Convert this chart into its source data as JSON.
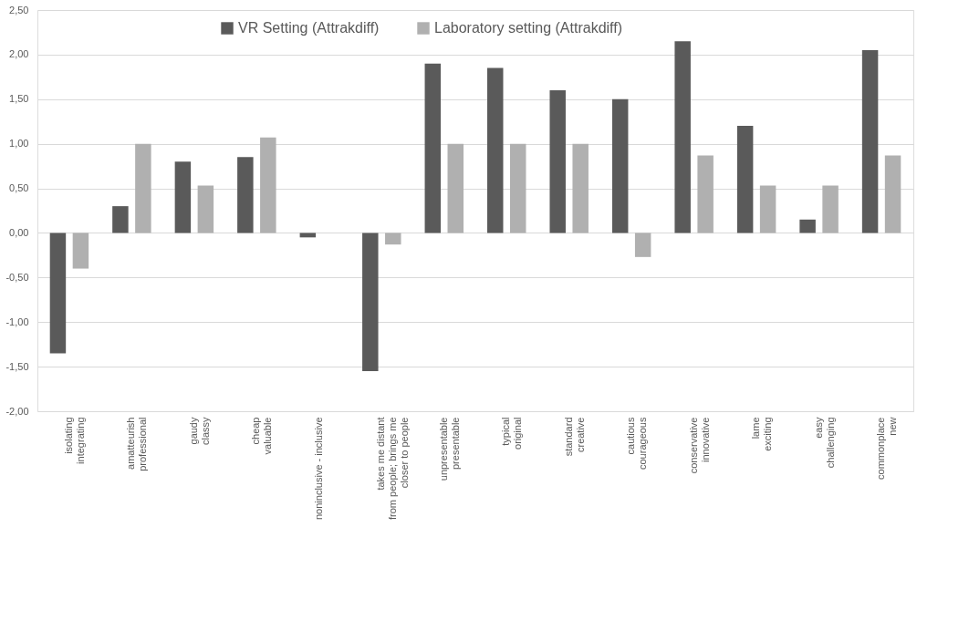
{
  "chart_data": {
    "type": "bar",
    "categories": [
      "isolating\nintegrating",
      "amatteurish\nprofessional",
      "gaudy\nclassy",
      "cheap\nvaluable",
      "noninclusive - inclusive",
      "takes me distant\nfrom people; brings me\ncloser to people",
      "unpresentable\npresentable",
      "typical\noriginal",
      "standard\ncreative",
      "cautious\ncourageous",
      "conservative\ninnovative",
      "lame\nexciting",
      "easy\nchallenging",
      "commonplace\nnew"
    ],
    "series": [
      {
        "name": "VR Setting (Attrakdiff)",
        "color": "#5a5a5a",
        "values": [
          -1.35,
          0.3,
          0.8,
          0.85,
          -0.05,
          -1.55,
          1.9,
          1.85,
          1.6,
          1.5,
          2.15,
          1.2,
          0.15,
          2.05
        ]
      },
      {
        "name": "Laboratory setting (Attrakdiff)",
        "color": "#b0b0b0",
        "values": [
          -0.4,
          1.0,
          0.53,
          1.07,
          0,
          -0.13,
          1.0,
          1.0,
          1.0,
          -0.27,
          0.87,
          0.53,
          0.53,
          0.87
        ]
      }
    ],
    "ylim": [
      -2,
      2.5
    ],
    "yticks": [
      {
        "value": -2,
        "label": "-2,00"
      },
      {
        "value": -1.5,
        "label": "-1,50"
      },
      {
        "value": -1,
        "label": "-1,00"
      },
      {
        "value": -0.5,
        "label": "-0,50"
      },
      {
        "value": 0,
        "label": "0,00"
      },
      {
        "value": 0.5,
        "label": "0,50"
      },
      {
        "value": 1,
        "label": "1,00"
      },
      {
        "value": 1.5,
        "label": "1,50"
      },
      {
        "value": 2,
        "label": "2,00"
      },
      {
        "value": 2.5,
        "label": "2,50"
      }
    ],
    "grid": "y",
    "legend": "top"
  }
}
